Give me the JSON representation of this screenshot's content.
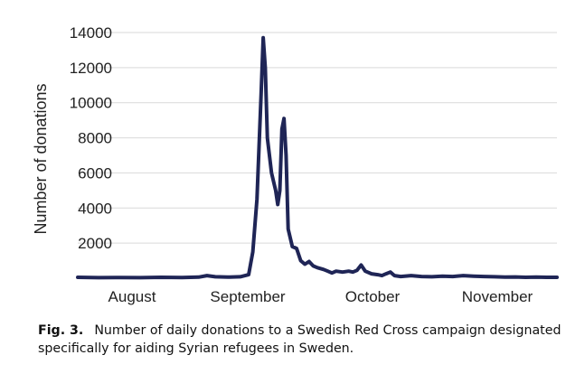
{
  "chart_data": {
    "type": "line",
    "title": "",
    "xlabel": "",
    "ylabel": "Number of donations",
    "ylim": [
      0,
      14000
    ],
    "yticks": [
      2000,
      4000,
      6000,
      8000,
      10000,
      12000,
      14000
    ],
    "xticks": [
      "August",
      "September",
      "October",
      "November"
    ],
    "grid": true,
    "line_color": "#1f2556",
    "series": [
      {
        "values": [
          [
            0,
            50
          ],
          [
            10,
            30
          ],
          [
            20,
            40
          ],
          [
            30,
            30
          ],
          [
            40,
            50
          ],
          [
            50,
            40
          ],
          [
            58,
            60
          ],
          [
            62,
            150
          ],
          [
            66,
            80
          ],
          [
            72,
            60
          ],
          [
            78,
            80
          ],
          [
            82,
            200
          ],
          [
            84,
            1500
          ],
          [
            86,
            4500
          ],
          [
            88,
            10500
          ],
          [
            89,
            13700
          ],
          [
            90,
            12000
          ],
          [
            91,
            8000
          ],
          [
            93,
            6000
          ],
          [
            95,
            5000
          ],
          [
            96,
            4200
          ],
          [
            97,
            5000
          ],
          [
            98,
            8500
          ],
          [
            99,
            9100
          ],
          [
            100,
            7000
          ],
          [
            101,
            2800
          ],
          [
            103,
            1800
          ],
          [
            105,
            1700
          ],
          [
            107,
            1000
          ],
          [
            109,
            800
          ],
          [
            111,
            950
          ],
          [
            113,
            700
          ],
          [
            115,
            600
          ],
          [
            118,
            500
          ],
          [
            120,
            400
          ],
          [
            122,
            300
          ],
          [
            124,
            400
          ],
          [
            127,
            350
          ],
          [
            130,
            400
          ],
          [
            132,
            350
          ],
          [
            134,
            450
          ],
          [
            136,
            750
          ],
          [
            138,
            400
          ],
          [
            141,
            250
          ],
          [
            144,
            200
          ],
          [
            146,
            150
          ],
          [
            148,
            250
          ],
          [
            150,
            350
          ],
          [
            152,
            150
          ],
          [
            155,
            100
          ],
          [
            160,
            150
          ],
          [
            165,
            100
          ],
          [
            170,
            80
          ],
          [
            175,
            120
          ],
          [
            180,
            100
          ],
          [
            185,
            150
          ],
          [
            190,
            120
          ],
          [
            195,
            100
          ],
          [
            200,
            80
          ],
          [
            205,
            60
          ],
          [
            210,
            70
          ],
          [
            215,
            50
          ],
          [
            220,
            60
          ],
          [
            225,
            50
          ],
          [
            230,
            50
          ]
        ]
      }
    ]
  },
  "caption": {
    "label": "Fig. 3.",
    "text": "Number of daily donations to a Swedish Red Cross campaign designated specifically for aiding Syrian refugees in Sweden."
  }
}
